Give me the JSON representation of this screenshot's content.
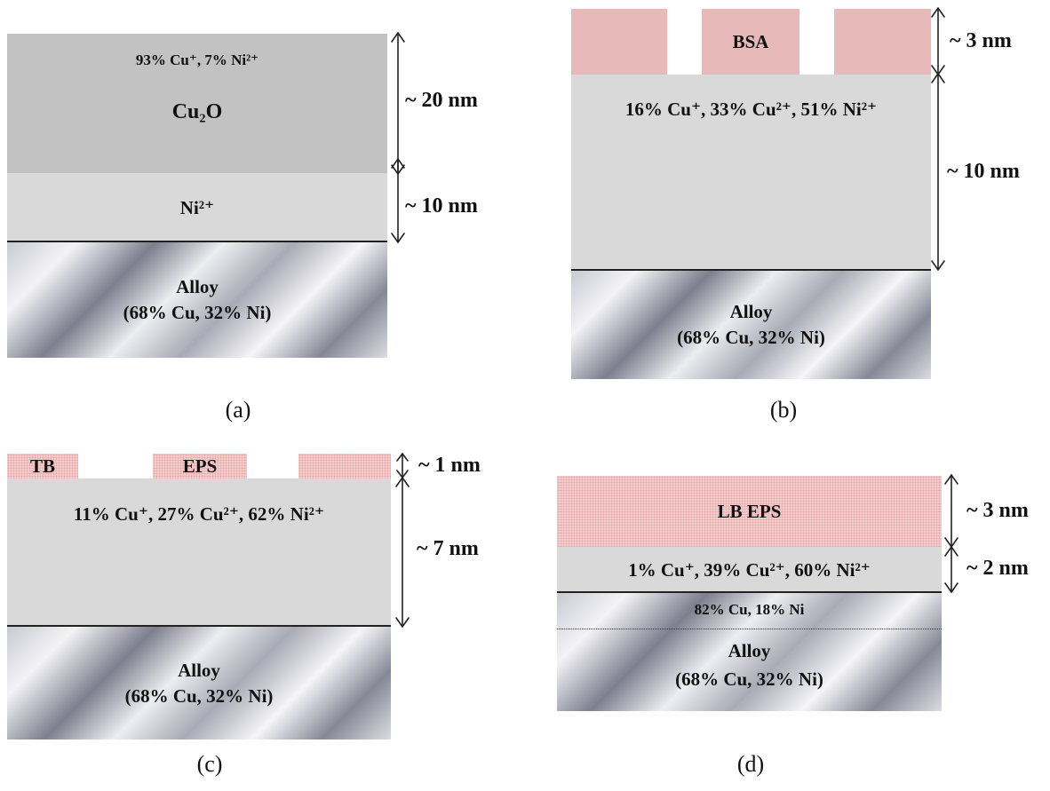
{
  "panels": [
    {
      "caption": "(a)",
      "layers": [
        "93% Cu⁺,  7% Ni²⁺",
        "Cu₂O",
        "Ni²⁺",
        "Alloy",
        "(68% Cu, 32% Ni)"
      ],
      "thickness": [
        "~ 20 nm",
        "~ 10 nm"
      ]
    },
    {
      "caption": "(b)",
      "layers": [
        "BSA",
        "16% Cu⁺, 33% Cu²⁺, 51% Ni²⁺",
        "Alloy",
        "(68% Cu, 32% Ni)"
      ],
      "thickness": [
        "~ 3 nm",
        "~ 10 nm"
      ]
    },
    {
      "caption": "(c)",
      "layers": [
        "TB",
        "EPS",
        "11% Cu⁺, 27% Cu²⁺, 62% Ni²⁺",
        "Alloy",
        "(68% Cu, 32% Ni)"
      ],
      "thickness": [
        "~ 1 nm",
        "~ 7 nm"
      ]
    },
    {
      "caption": "(d)",
      "layers": [
        "LB EPS",
        "1% Cu⁺, 39% Cu²⁺, 60% Ni²⁺",
        "82% Cu, 18% Ni",
        "Alloy",
        "(68% Cu, 32% Ni)"
      ],
      "thickness": [
        "~ 3 nm",
        "~ 2 nm"
      ]
    }
  ]
}
